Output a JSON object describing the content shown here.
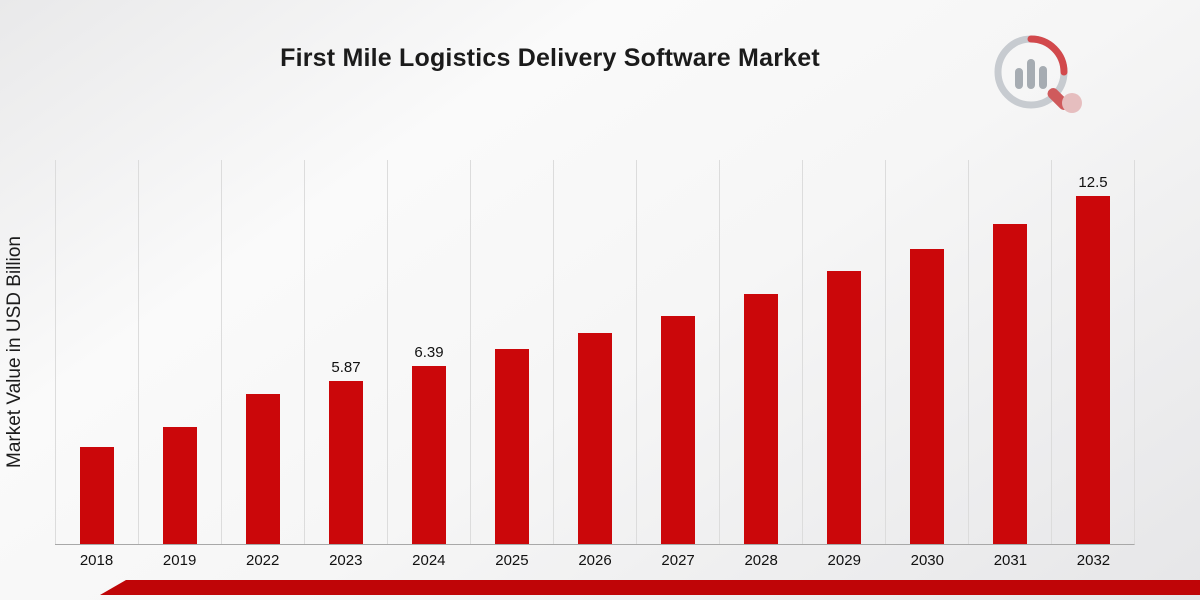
{
  "header": {
    "title": "First Mile Logistics Delivery Software Market",
    "logo_name": "market-research-brand-logo"
  },
  "axes": {
    "y_label": "Market Value in USD Billion"
  },
  "footer": {
    "accent_bar_color": "#bf0507"
  },
  "chart_data": {
    "type": "bar",
    "title": "First Mile Logistics Delivery Software Market",
    "xlabel": "",
    "ylabel": "Market Value in USD Billion",
    "ylim": [
      0,
      13.8
    ],
    "grid": "vertical-light-gridlines",
    "legend": "none",
    "bar_color": "#cb070a",
    "categories": [
      "2018",
      "2019",
      "2022",
      "2023",
      "2024",
      "2025",
      "2026",
      "2027",
      "2028",
      "2029",
      "2030",
      "2031",
      "2032"
    ],
    "values": [
      3.5,
      4.2,
      5.4,
      5.87,
      6.39,
      7.0,
      7.6,
      8.2,
      9.0,
      9.8,
      10.6,
      11.5,
      12.5
    ],
    "data_labels": [
      "",
      "",
      "",
      "5.87",
      "6.39",
      "",
      "",
      "",
      "",
      "",
      "",
      "",
      "12.5"
    ]
  }
}
